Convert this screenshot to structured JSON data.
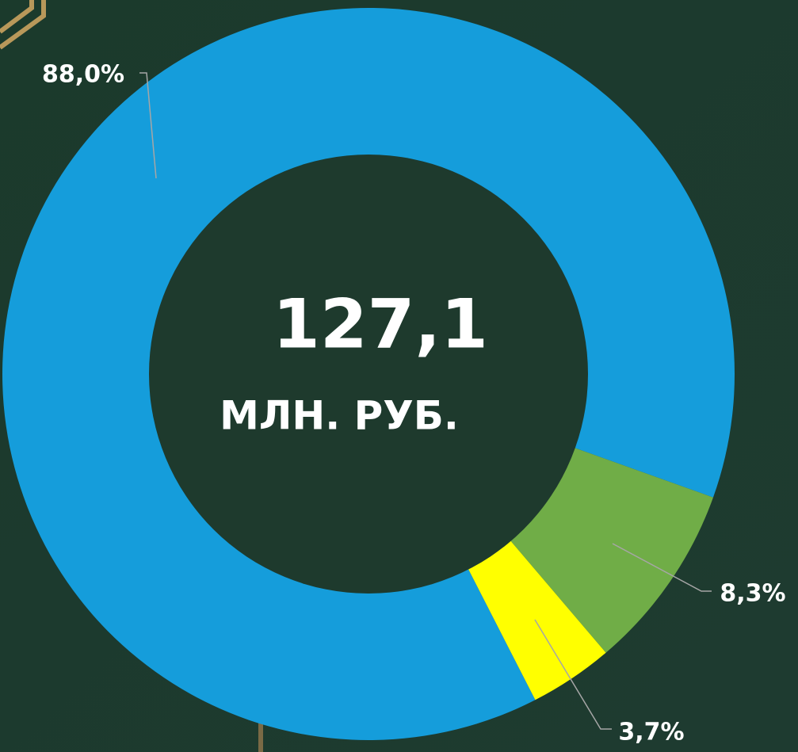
{
  "chart_data": {
    "type": "donut",
    "values": [
      88.0,
      8.3,
      3.7
    ],
    "value_labels": [
      "88,0%",
      "8,3%",
      "3,7%"
    ],
    "colors": [
      "#159ddb",
      "#70ad47",
      "#ffff00"
    ],
    "annotations": [
      "127,1",
      "МЛН. РУБ."
    ]
  }
}
